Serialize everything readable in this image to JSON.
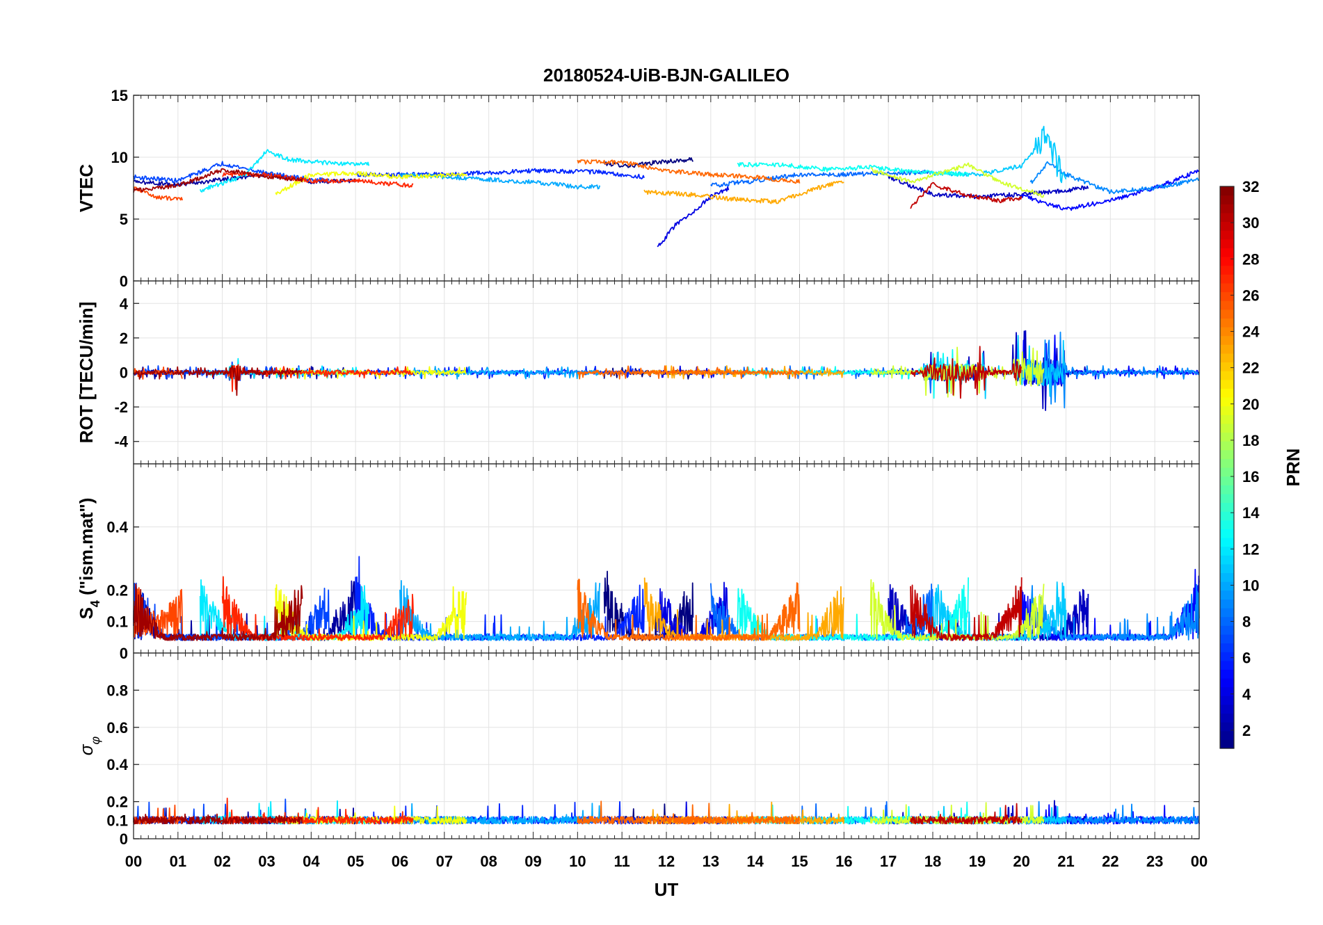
{
  "chart_data": {
    "type": "line",
    "title": "20180524-UiB-BJN-GALILEO",
    "xlabel": "UT",
    "x_tick_labels": [
      "00",
      "01",
      "02",
      "03",
      "04",
      "05",
      "06",
      "07",
      "08",
      "09",
      "10",
      "11",
      "12",
      "13",
      "14",
      "15",
      "16",
      "17",
      "18",
      "19",
      "20",
      "21",
      "22",
      "23",
      "00"
    ],
    "x_range_hours": [
      0,
      24
    ],
    "panels": [
      {
        "name": "vtec",
        "ylabel": "VTEC",
        "ylim": [
          0,
          15
        ],
        "yticks": [
          0,
          5,
          10,
          15
        ]
      },
      {
        "name": "rot",
        "ylabel": "ROT [TECU/min]",
        "ylim": [
          -5.3,
          5.3
        ],
        "yticks": [
          -4,
          -2,
          0,
          2,
          4
        ]
      },
      {
        "name": "s4",
        "ylabel_main": "S",
        "ylabel_sub": "4",
        "ylabel_rest": " (\"ism.mat\")",
        "ylim": [
          0,
          0.6
        ],
        "yticks": [
          0,
          0.1,
          0.2,
          0.4
        ]
      },
      {
        "name": "sigma_phi",
        "ylabel_main": "σ",
        "ylabel_sub": "φ",
        "ylim": [
          0,
          1
        ],
        "yticks": [
          0,
          0.1,
          0.2,
          0.4,
          0.6,
          0.8
        ]
      }
    ],
    "colorbar": {
      "label": "PRN",
      "range": [
        1,
        32
      ],
      "tick_values": [
        2,
        4,
        6,
        8,
        10,
        12,
        14,
        16,
        18,
        20,
        22,
        24,
        26,
        28,
        30,
        32
      ],
      "tick_labels": [
        "2",
        "4",
        "6",
        "8",
        "10",
        "12",
        "14",
        "16",
        "18",
        "20",
        "22",
        "24",
        "26",
        "28",
        "30",
        "32"
      ],
      "colormap": "jet"
    },
    "series": [
      {
        "prn": 1,
        "start": 10.6,
        "end": 12.6,
        "vtec": [
          [
            10.6,
            9.5
          ],
          [
            11.2,
            9.3
          ],
          [
            11.8,
            9.6
          ],
          [
            12.6,
            9.8
          ]
        ]
      },
      {
        "prn": 2,
        "start": 0.0,
        "end": 5.0,
        "vtec": [
          [
            0,
            8.0
          ],
          [
            1,
            7.8
          ],
          [
            2,
            8.2
          ],
          [
            3,
            8.6
          ],
          [
            4,
            8.0
          ],
          [
            5,
            8.1
          ]
        ]
      },
      {
        "prn": 3,
        "start": 17.0,
        "end": 21.5,
        "vtec": [
          [
            17,
            8.4
          ],
          [
            18,
            7.0
          ],
          [
            19,
            6.8
          ],
          [
            20,
            7.0
          ],
          [
            21,
            7.3
          ],
          [
            21.5,
            7.6
          ]
        ]
      },
      {
        "prn": 4,
        "start": 11.8,
        "end": 13.4,
        "vtec": [
          [
            11.8,
            2.7
          ],
          [
            12.2,
            4.5
          ],
          [
            12.6,
            5.6
          ],
          [
            13.0,
            6.8
          ],
          [
            13.4,
            7.5
          ]
        ]
      },
      {
        "prn": 5,
        "start": 20.0,
        "end": 24.0,
        "vtec": [
          [
            20,
            6.9
          ],
          [
            21,
            5.8
          ],
          [
            22,
            6.5
          ],
          [
            23,
            7.5
          ],
          [
            24,
            8.9
          ]
        ]
      },
      {
        "prn": 6,
        "start": 5.0,
        "end": 11.5,
        "vtec": [
          [
            5,
            8.6
          ],
          [
            7,
            8.6
          ],
          [
            9,
            8.9
          ],
          [
            10.5,
            8.8
          ],
          [
            11.5,
            8.4
          ]
        ]
      },
      {
        "prn": 7,
        "start": 0.0,
        "end": 4.4,
        "vtec": [
          [
            0,
            8.4
          ],
          [
            1,
            8.1
          ],
          [
            2,
            9.5
          ],
          [
            3,
            8.7
          ],
          [
            4,
            8.2
          ]
        ]
      },
      {
        "prn": 8,
        "start": 13.0,
        "end": 18.0,
        "vtec": [
          [
            13,
            7.7
          ],
          [
            14,
            8.1
          ],
          [
            15,
            8.6
          ],
          [
            16,
            8.6
          ],
          [
            17,
            8.7
          ],
          [
            18,
            8.8
          ]
        ]
      },
      {
        "prn": 9,
        "start": 20.2,
        "end": 24.0,
        "vtec": [
          [
            20.2,
            7.9
          ],
          [
            20.6,
            9.6
          ],
          [
            21,
            8.6
          ],
          [
            22,
            7.2
          ],
          [
            23,
            7.5
          ],
          [
            24,
            8.2
          ]
        ]
      },
      {
        "prn": 10,
        "start": 6.0,
        "end": 10.5,
        "vtec": [
          [
            6,
            8.6
          ],
          [
            7,
            8.4
          ],
          [
            8,
            8.2
          ],
          [
            9,
            8.0
          ],
          [
            10,
            7.6
          ]
        ]
      },
      {
        "prn": 11,
        "start": 18.0,
        "end": 21.0,
        "vtec": [
          [
            18,
            8.7
          ],
          [
            19,
            8.6
          ],
          [
            20,
            9.3
          ],
          [
            20.5,
            11.6
          ],
          [
            21,
            8.3
          ]
        ]
      },
      {
        "prn": 12,
        "start": 1.5,
        "end": 5.3,
        "vtec": [
          [
            1.5,
            7.3
          ],
          [
            2.5,
            8.5
          ],
          [
            3,
            10.5
          ],
          [
            3.5,
            9.8
          ],
          [
            4.5,
            9.5
          ],
          [
            5.3,
            9.4
          ]
        ]
      },
      {
        "prn": 13,
        "start": 13.6,
        "end": 18.8,
        "vtec": [
          [
            13.6,
            9.4
          ],
          [
            14.6,
            9.4
          ],
          [
            15.6,
            9.0
          ],
          [
            16.6,
            9.2
          ],
          [
            17.6,
            8.8
          ],
          [
            18.8,
            8.6
          ]
        ]
      },
      {
        "prn": 19,
        "start": 16.6,
        "end": 20.5,
        "vtec": [
          [
            16.6,
            9.0
          ],
          [
            17.5,
            8.0
          ],
          [
            18.8,
            9.4
          ],
          [
            19.5,
            8.0
          ],
          [
            20.5,
            6.9
          ]
        ]
      },
      {
        "prn": 20,
        "start": 3.2,
        "end": 7.5,
        "vtec": [
          [
            3.2,
            7.0
          ],
          [
            4,
            8.6
          ],
          [
            5,
            8.7
          ],
          [
            6,
            8.4
          ],
          [
            7.5,
            8.6
          ]
        ]
      },
      {
        "prn": 23,
        "start": 11.5,
        "end": 16.0,
        "vtec": [
          [
            11.5,
            7.2
          ],
          [
            12.5,
            7.0
          ],
          [
            13.5,
            6.6
          ],
          [
            14.5,
            6.4
          ],
          [
            15.5,
            7.6
          ],
          [
            16,
            8.1
          ]
        ]
      },
      {
        "prn": 25,
        "start": 10.0,
        "end": 15.0,
        "vtec": [
          [
            10,
            9.6
          ],
          [
            11,
            9.6
          ],
          [
            12,
            8.9
          ],
          [
            13,
            8.6
          ],
          [
            14,
            8.4
          ],
          [
            15,
            8.0
          ]
        ]
      },
      {
        "prn": 26,
        "start": 0.0,
        "end": 1.1,
        "vtec": [
          [
            0,
            7.5
          ],
          [
            0.5,
            6.8
          ],
          [
            1.1,
            6.6
          ]
        ]
      },
      {
        "prn": 27,
        "start": 2.0,
        "end": 6.3,
        "vtec": [
          [
            2,
            8.6
          ],
          [
            3,
            8.6
          ],
          [
            4,
            8.1
          ],
          [
            5,
            8.1
          ],
          [
            6.3,
            7.7
          ]
        ]
      },
      {
        "prn": 30,
        "start": 17.5,
        "end": 20.0,
        "vtec": [
          [
            17.5,
            6.0
          ],
          [
            18,
            7.8
          ],
          [
            18.8,
            6.9
          ],
          [
            19.5,
            6.5
          ],
          [
            20,
            6.7
          ]
        ]
      },
      {
        "prn": 31,
        "start": 0.0,
        "end": 3.8,
        "vtec": [
          [
            0,
            7.3
          ],
          [
            1,
            7.7
          ],
          [
            2,
            9.0
          ],
          [
            3,
            8.4
          ],
          [
            3.8,
            8.2
          ]
        ]
      }
    ]
  }
}
